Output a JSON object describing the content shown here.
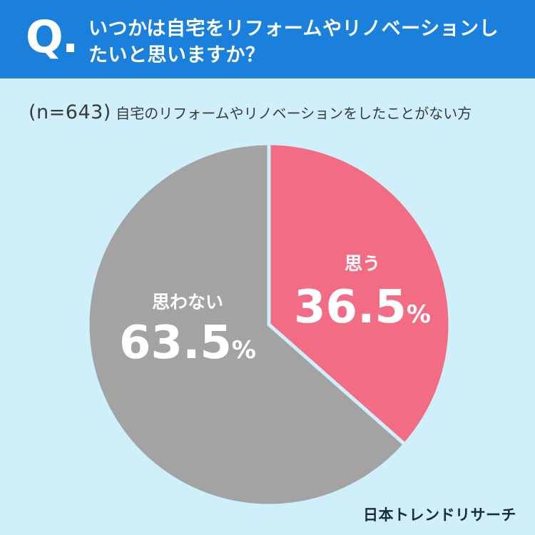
{
  "header": {
    "q_mark": "Q.",
    "question": "いつかは自宅をリフォームやリノベーションしたいと思いますか？"
  },
  "subtitle": {
    "n": "(n=643)",
    "text": "自宅のリフォームやリノベーションをしたことがない方"
  },
  "brand": "日本トレンドリサーチ",
  "colors": {
    "header_bg": "#1b7fdc",
    "page_bg": "#cfeffa",
    "yes": "#f26c83",
    "no": "#a3a3a3"
  },
  "chart_data": {
    "type": "pie",
    "categories": [
      "思う",
      "思わない"
    ],
    "values": [
      36.5,
      63.5
    ],
    "labels": [
      "36.5%",
      "63.5%"
    ],
    "start": "12 o'clock, clockwise"
  }
}
